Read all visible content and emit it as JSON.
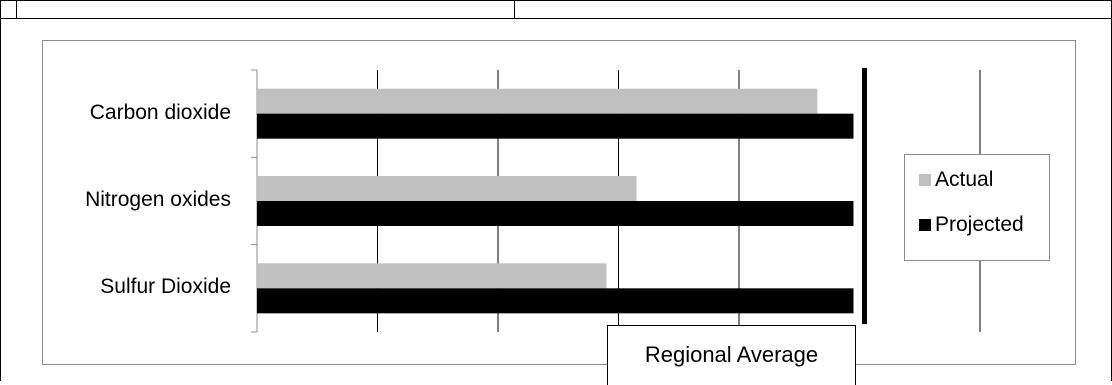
{
  "chart_data": {
    "type": "bar",
    "orientation": "horizontal",
    "categories": [
      "Carbon dioxide",
      "Nitrogen oxides",
      "Sulfur Dioxide"
    ],
    "series": [
      {
        "name": "Actual",
        "color": "#c0c0c0",
        "values": [
          4.65,
          3.15,
          2.9
        ]
      },
      {
        "name": "Projected",
        "color": "#000000",
        "values": [
          4.95,
          4.95,
          4.95
        ]
      }
    ],
    "xlim": [
      0,
      6
    ],
    "x_tick_labels": false,
    "grid": true,
    "legend": "right",
    "reference_line": {
      "label": "Regional Average",
      "value": 5
    },
    "title": "",
    "xlabel": "",
    "ylabel": ""
  }
}
